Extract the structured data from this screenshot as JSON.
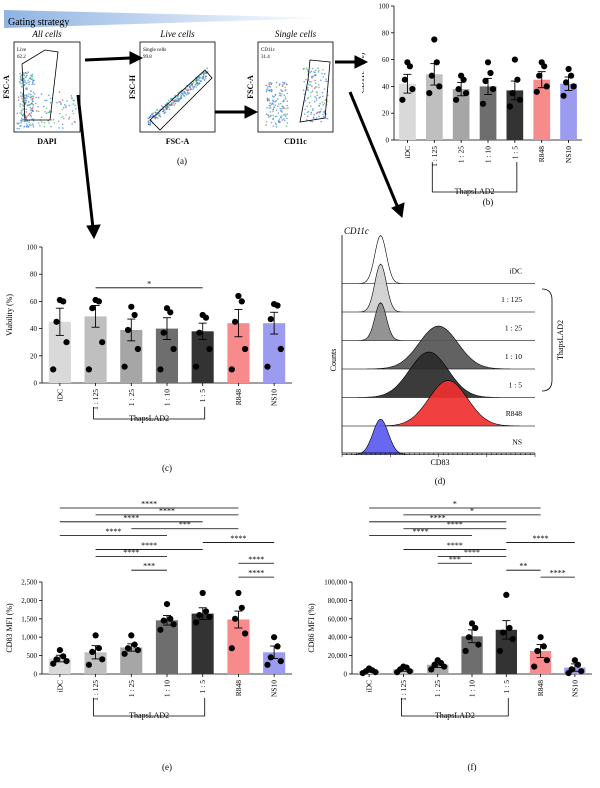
{
  "gating": {
    "banner": "Gating strategy",
    "panel_label": "(a)",
    "plots": [
      {
        "title": "All cells",
        "gate_name": "Live",
        "gate_value": "62.2",
        "ylabel": "FSC-A",
        "xlabel": "DAPI"
      },
      {
        "title": "Live cells",
        "gate_name": "Single cells",
        "gate_value": "99.8",
        "ylabel": "FSC-H",
        "xlabel": "FSC-A"
      },
      {
        "title": "Single cells",
        "gate_name": "CD11c",
        "gate_value": "31.4",
        "ylabel": "FSC-A",
        "xlabel": "CD11c"
      }
    ]
  },
  "histogram": {
    "panel_label": "(d)",
    "title": "CD11c",
    "ylabel": "Counts",
    "xlabel": "CD83",
    "group_label": "ThapsLAD2",
    "tracks": [
      {
        "label": "iDC",
        "color": "#ffffff",
        "peak": 0.2,
        "height": 0.95,
        "width": 0.03
      },
      {
        "label": "1 : 125",
        "color": "#cfcfcf",
        "peak": 0.2,
        "height": 0.95,
        "width": 0.03
      },
      {
        "label": "1 : 25",
        "color": "#8a8a8a",
        "peak": 0.2,
        "height": 0.75,
        "width": 0.03
      },
      {
        "label": "1 : 10",
        "color": "#555555",
        "peak": 0.5,
        "height": 0.85,
        "width": 0.1
      },
      {
        "label": "1 : 5",
        "color": "#2a2a2a",
        "peak": 0.45,
        "height": 0.9,
        "width": 0.1
      },
      {
        "label": "R848",
        "color": "#f03030",
        "peak": 0.55,
        "height": 0.9,
        "width": 0.1
      },
      {
        "label": "NS",
        "color": "#5a5af0",
        "peak": 0.2,
        "height": 0.7,
        "width": 0.04
      }
    ]
  },
  "chart_data": [
    {
      "panel_label": "(b)",
      "type": "bar",
      "ylabel": "CD11c⁺ (%)",
      "xlabel": "ThapsLAD2",
      "ylim": [
        0,
        100
      ],
      "yticks": [
        0,
        20,
        40,
        60,
        80,
        100
      ],
      "categories": [
        "iDC",
        "1 : 125",
        "1 : 25",
        "1 : 10",
        "1 : 5",
        "R848",
        "NS10"
      ],
      "values": [
        42,
        49,
        38,
        40,
        37,
        45,
        42
      ],
      "errors": [
        7,
        8,
        5,
        6,
        7,
        6,
        5
      ],
      "points": [
        [
          30,
          38,
          45,
          55,
          58
        ],
        [
          35,
          40,
          48,
          58,
          75
        ],
        [
          30,
          35,
          38,
          45,
          48
        ],
        [
          27,
          38,
          44,
          50,
          58
        ],
        [
          25,
          30,
          35,
          45,
          60
        ],
        [
          36,
          40,
          48,
          55,
          58
        ],
        [
          33,
          40,
          43,
          48,
          53
        ]
      ],
      "colors": [
        "#d9d9d9",
        "#bfbfbf",
        "#a6a6a6",
        "#6e6e6e",
        "#333333",
        "#f78a8a",
        "#9b9bf0"
      ],
      "group": {
        "label": "ThapsLAD2",
        "from": 1,
        "to": 4
      },
      "significance": []
    },
    {
      "panel_label": "(c)",
      "type": "bar",
      "ylabel": "Viability (%)",
      "xlabel": "ThapsLAD2",
      "ylim": [
        0,
        100
      ],
      "yticks": [
        0,
        20,
        40,
        60,
        80,
        100
      ],
      "categories": [
        "iDC",
        "1 : 125",
        "1 : 25",
        "1 : 10",
        "1 : 5",
        "R848",
        "NS10"
      ],
      "values": [
        45,
        49,
        39,
        40,
        38,
        44,
        44
      ],
      "errors": [
        10,
        8,
        8,
        8,
        6,
        10,
        8
      ],
      "points": [
        [
          10,
          30,
          45,
          60,
          61
        ],
        [
          10,
          30,
          55,
          60,
          61
        ],
        [
          12,
          25,
          39,
          50,
          56
        ],
        [
          10,
          25,
          37,
          52,
          55
        ],
        [
          12,
          25,
          37,
          48,
          50
        ],
        [
          10,
          25,
          45,
          60,
          64
        ],
        [
          12,
          25,
          47,
          57,
          58
        ]
      ],
      "colors": [
        "#d9d9d9",
        "#bfbfbf",
        "#a6a6a6",
        "#6e6e6e",
        "#333333",
        "#f78a8a",
        "#9b9bf0"
      ],
      "group": {
        "label": "ThapsLAD2",
        "from": 1,
        "to": 4
      },
      "significance": [
        {
          "from": 1,
          "to": 4,
          "label": "*"
        }
      ]
    },
    {
      "panel_label": "(e)",
      "type": "bar",
      "ylabel": "CD83 MFI (%)",
      "xlabel": "ThapsLAD2",
      "ylim": [
        0,
        2500
      ],
      "yticks": [
        0,
        500,
        1000,
        1500,
        2000,
        2500
      ],
      "ytick_labels": [
        "0",
        "500",
        "1,000",
        "1,500",
        "2,000",
        "2,500"
      ],
      "categories": [
        "iDC",
        "1 : 125",
        "1 : 25",
        "1 : 10",
        "1 : 5",
        "R848",
        "NS10"
      ],
      "values": [
        420,
        590,
        720,
        1460,
        1640,
        1480,
        590
      ],
      "errors": [
        90,
        180,
        100,
        130,
        160,
        230,
        170
      ],
      "points": [
        [
          280,
          350,
          400,
          480,
          650
        ],
        [
          250,
          400,
          600,
          700,
          1050
        ],
        [
          550,
          650,
          700,
          800,
          1050
        ],
        [
          1200,
          1350,
          1450,
          1500,
          1900
        ],
        [
          1400,
          1550,
          1600,
          1700,
          2200
        ],
        [
          700,
          1100,
          1500,
          1800,
          2200
        ],
        [
          250,
          350,
          450,
          750,
          1000
        ]
      ],
      "colors": [
        "#d9d9d9",
        "#bfbfbf",
        "#a6a6a6",
        "#6e6e6e",
        "#333333",
        "#f78a8a",
        "#9b9bf0"
      ],
      "group": {
        "label": "ThapsLAD2",
        "from": 1,
        "to": 4
      },
      "significance": [
        {
          "from": 0,
          "to": 5,
          "label": "****"
        },
        {
          "from": 1,
          "to": 5,
          "label": "****"
        },
        {
          "from": 0,
          "to": 4,
          "label": "****"
        },
        {
          "from": 2,
          "to": 5,
          "label": "***"
        },
        {
          "from": 0,
          "to": 3,
          "label": "****"
        },
        {
          "from": 4,
          "to": 6,
          "label": "****"
        },
        {
          "from": 1,
          "to": 4,
          "label": "****"
        },
        {
          "from": 1,
          "to": 3,
          "label": "****"
        },
        {
          "from": 5,
          "to": 6,
          "label": "****"
        },
        {
          "from": 2,
          "to": 3,
          "label": "***"
        },
        {
          "from": 5,
          "to": 6,
          "label": "****"
        }
      ]
    },
    {
      "panel_label": "(f)",
      "type": "bar",
      "ylabel": "CD86 MFI (%)",
      "xlabel": "ThapsLAD2",
      "ylim": [
        0,
        100000
      ],
      "yticks": [
        0,
        20000,
        40000,
        60000,
        80000,
        100000
      ],
      "ytick_labels": [
        "0",
        "20,000",
        "40,000",
        "60,000",
        "80,000",
        "100,000"
      ],
      "categories": [
        "iDC",
        "1 : 125",
        "1 : 25",
        "1 : 10",
        "1 : 5",
        "R848",
        "NS10"
      ],
      "values": [
        3500,
        5000,
        10000,
        41000,
        48000,
        25000,
        7000
      ],
      "errors": [
        1500,
        2000,
        3000,
        7000,
        10000,
        7000,
        4000
      ],
      "points": [
        [
          1000,
          2000,
          3000,
          4000,
          6000
        ],
        [
          2000,
          3000,
          5000,
          7000,
          8000
        ],
        [
          5000,
          8000,
          10000,
          12000,
          15000
        ],
        [
          25000,
          32000,
          40000,
          50000,
          55000
        ],
        [
          25000,
          38000,
          45000,
          50000,
          86000
        ],
        [
          8000,
          15000,
          25000,
          30000,
          40000
        ],
        [
          1000,
          3000,
          5000,
          10000,
          15000
        ]
      ],
      "colors": [
        "#d9d9d9",
        "#bfbfbf",
        "#a6a6a6",
        "#6e6e6e",
        "#333333",
        "#f78a8a",
        "#9b9bf0"
      ],
      "group": {
        "label": "ThapsLAD2",
        "from": 1,
        "to": 4
      },
      "significance": [
        {
          "from": 0,
          "to": 5,
          "label": "*"
        },
        {
          "from": 1,
          "to": 5,
          "label": "*"
        },
        {
          "from": 0,
          "to": 4,
          "label": "****"
        },
        {
          "from": 1,
          "to": 4,
          "label": "****"
        },
        {
          "from": 0,
          "to": 3,
          "label": "****"
        },
        {
          "from": 4,
          "to": 6,
          "label": "****"
        },
        {
          "from": 1,
          "to": 4,
          "label": "****"
        },
        {
          "from": 2,
          "to": 4,
          "label": "****"
        },
        {
          "from": 2,
          "to": 3,
          "label": "***"
        },
        {
          "from": 4,
          "to": 5,
          "label": "**"
        },
        {
          "from": 5,
          "to": 6,
          "label": "****"
        }
      ]
    }
  ]
}
